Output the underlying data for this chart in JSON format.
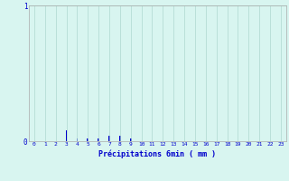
{
  "xlabel": "Précipitations 6min ( mm )",
  "background_color": "#d8f5f0",
  "bar_color": "#0000cc",
  "grid_color": "#aed8d0",
  "axis_color": "#aaaaaa",
  "text_color": "#0000cc",
  "ylim": [
    0,
    1.0
  ],
  "xlim": [
    -0.5,
    23.5
  ],
  "yticks": [
    0,
    1
  ],
  "xticks": [
    0,
    1,
    2,
    3,
    4,
    5,
    6,
    7,
    8,
    9,
    10,
    11,
    12,
    13,
    14,
    15,
    16,
    17,
    18,
    19,
    20,
    21,
    22,
    23
  ],
  "hours": [
    0,
    1,
    2,
    3,
    4,
    5,
    6,
    7,
    8,
    9,
    10,
    11,
    12,
    13,
    14,
    15,
    16,
    17,
    18,
    19,
    20,
    21,
    22,
    23
  ],
  "values": [
    0,
    0,
    0,
    0.08,
    0.02,
    0.02,
    0.02,
    0.04,
    0.04,
    0.02,
    0,
    0,
    0,
    0,
    0,
    0,
    0,
    0,
    0,
    0,
    0,
    0,
    0,
    0
  ],
  "bar_width": 0.15
}
